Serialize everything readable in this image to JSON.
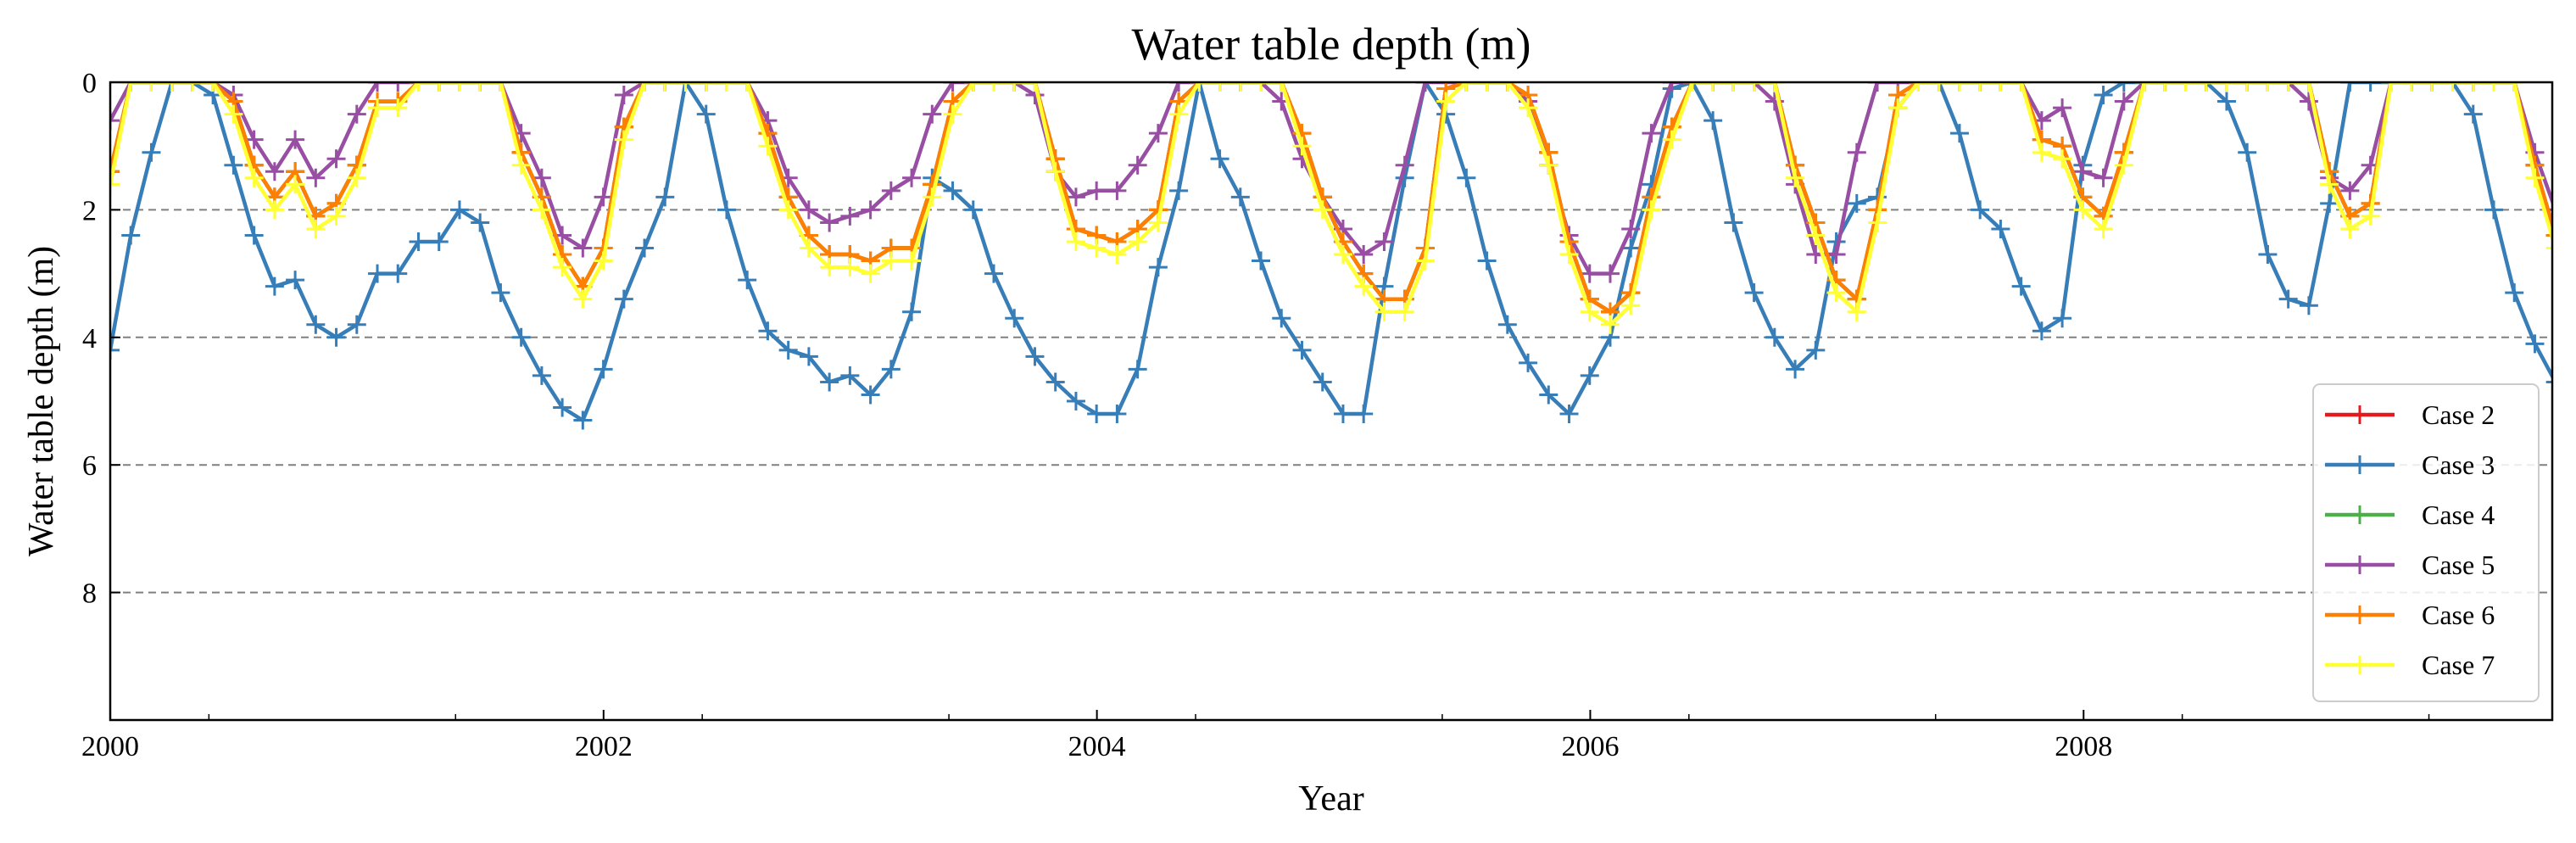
{
  "chart_data": {
    "type": "line",
    "title": "Water table depth (m)",
    "xlabel": "Year",
    "ylabel": "Water table depth (m)",
    "xlim": [
      2000,
      2009.9
    ],
    "ylim": [
      10,
      0
    ],
    "y_inverted": true,
    "x_ticks": [
      2000,
      2002,
      2004,
      2006,
      2008
    ],
    "x_tick_labels": [
      "2000",
      "2002",
      "2004",
      "2006",
      "2008"
    ],
    "x_minor_ticks": [
      2000.4,
      2001.4,
      2002.4,
      2003.4,
      2004.4,
      2005.4,
      2006.4,
      2007.4,
      2008.4,
      2009.4
    ],
    "y_ticks": [
      0,
      2,
      4,
      6,
      8
    ],
    "y_tick_labels": [
      "0",
      "2",
      "4",
      "6",
      "8"
    ],
    "grid": "horizontal dashed at y = 2, 4, 6, 8",
    "marker": "plus",
    "legend_position": "lower-right",
    "x_start": 2000.0,
    "x_step_years": 0.0833,
    "series": [
      {
        "name": "Case 2",
        "color": "#e41a1c",
        "values": [
          1.4,
          0.0,
          0.0,
          0.0,
          0.0,
          0.0,
          0.3,
          1.3,
          1.8,
          1.4,
          2.1,
          1.9,
          1.3,
          0.3,
          0.3,
          0.0,
          0.0,
          0.0,
          0.0,
          0.0,
          1.1,
          1.8,
          2.7,
          3.2,
          2.6,
          0.7,
          0.0,
          0.0,
          0.0,
          0.0,
          0.0,
          0.0,
          0.8,
          1.8,
          2.4,
          2.7,
          2.7,
          2.8,
          2.6,
          2.6,
          1.6,
          0.3,
          0.0,
          0.0,
          0.0,
          0.0,
          1.2,
          2.3,
          2.4,
          2.5,
          2.3,
          2.0,
          0.3,
          0.0,
          0.0,
          0.0,
          0.0,
          0.0,
          0.8,
          1.8,
          2.5,
          3.0,
          3.4,
          3.4,
          2.6,
          0.1,
          0.0,
          0.0,
          0.0,
          0.2,
          1.1,
          2.5,
          3.4,
          3.6,
          3.3,
          1.8,
          0.7,
          0.0,
          0.0,
          0.0,
          0.0,
          0.0,
          1.3,
          2.2,
          3.1,
          3.4,
          2.0,
          0.2,
          0.0,
          0.0,
          0.0,
          0.0,
          0.0,
          0.0,
          0.9,
          1.0,
          1.8,
          2.1,
          1.1,
          0.0,
          0.0,
          0.0,
          0.0,
          0.0,
          0.0,
          0.0,
          0.0,
          0.0,
          1.4,
          2.1,
          1.9,
          0.0,
          0.0,
          0.0,
          0.0,
          0.0,
          0.0,
          0.0,
          1.3,
          2.4,
          3.2,
          3.8
        ]
      },
      {
        "name": "Case 3",
        "color": "#377eb8",
        "values": [
          4.2,
          2.4,
          1.1,
          0.0,
          0.0,
          0.2,
          1.3,
          2.4,
          3.2,
          3.1,
          3.8,
          4.0,
          3.8,
          3.0,
          3.0,
          2.5,
          2.5,
          2.0,
          2.2,
          3.3,
          4.0,
          4.6,
          5.1,
          5.3,
          4.5,
          3.4,
          2.6,
          1.8,
          0.0,
          0.5,
          2.0,
          3.1,
          3.9,
          4.2,
          4.3,
          4.7,
          4.6,
          4.9,
          4.5,
          3.6,
          1.5,
          1.7,
          2.0,
          3.0,
          3.7,
          4.3,
          4.7,
          5.0,
          5.2,
          5.2,
          4.5,
          2.9,
          1.7,
          0.0,
          1.2,
          1.8,
          2.8,
          3.7,
          4.2,
          4.7,
          5.2,
          5.2,
          3.2,
          1.5,
          0.0,
          0.5,
          1.5,
          2.8,
          3.8,
          4.4,
          4.9,
          5.2,
          4.6,
          4.0,
          2.6,
          1.6,
          0.1,
          0.0,
          0.6,
          2.2,
          3.3,
          4.0,
          4.5,
          4.2,
          2.5,
          1.9,
          1.8,
          0.4,
          0.0,
          0.0,
          0.8,
          2.0,
          2.3,
          3.2,
          3.9,
          3.7,
          1.3,
          0.2,
          0.0,
          0.0,
          0.0,
          0.0,
          0.0,
          0.3,
          1.1,
          2.7,
          3.4,
          3.5,
          1.9,
          0.0,
          0.0,
          0.0,
          0.0,
          0.0,
          0.0,
          0.5,
          2.0,
          3.3,
          4.1,
          4.7
        ]
      },
      {
        "name": "Case 4",
        "color": "#4daf4a",
        "values": [
          1.4,
          0.0,
          0.0,
          0.0,
          0.0,
          0.0,
          0.3,
          1.3,
          1.8,
          1.4,
          2.1,
          1.9,
          1.3,
          0.3,
          0.3,
          0.0,
          0.0,
          0.0,
          0.0,
          0.0,
          1.1,
          1.8,
          2.7,
          3.2,
          2.6,
          0.7,
          0.0,
          0.0,
          0.0,
          0.0,
          0.0,
          0.0,
          0.8,
          1.8,
          2.4,
          2.7,
          2.7,
          2.8,
          2.6,
          2.6,
          1.6,
          0.3,
          0.0,
          0.0,
          0.0,
          0.0,
          1.2,
          2.3,
          2.4,
          2.5,
          2.3,
          2.0,
          0.3,
          0.0,
          0.0,
          0.0,
          0.0,
          0.0,
          0.8,
          1.8,
          2.5,
          3.0,
          3.4,
          3.4,
          2.6,
          0.1,
          0.0,
          0.0,
          0.0,
          0.2,
          1.1,
          2.5,
          3.4,
          3.6,
          3.3,
          1.8,
          0.7,
          0.0,
          0.0,
          0.0,
          0.0,
          0.0,
          1.3,
          2.2,
          3.1,
          3.4,
          2.0,
          0.2,
          0.0,
          0.0,
          0.0,
          0.0,
          0.0,
          0.0,
          0.9,
          1.0,
          1.8,
          2.1,
          1.1,
          0.0,
          0.0,
          0.0,
          0.0,
          0.0,
          0.0,
          0.0,
          0.0,
          0.0,
          1.4,
          2.1,
          1.9,
          0.0,
          0.0,
          0.0,
          0.0,
          0.0,
          0.0,
          0.0,
          1.3,
          2.4,
          3.2,
          3.8
        ]
      },
      {
        "name": "Case 5",
        "color": "#984ea3",
        "values": [
          0.6,
          0.0,
          0.0,
          0.0,
          0.0,
          0.0,
          0.2,
          0.9,
          1.4,
          0.9,
          1.5,
          1.2,
          0.5,
          0.0,
          0.0,
          0.0,
          0.0,
          0.0,
          0.0,
          0.0,
          0.8,
          1.5,
          2.4,
          2.6,
          1.8,
          0.2,
          0.0,
          0.0,
          0.0,
          0.0,
          0.0,
          0.0,
          0.6,
          1.5,
          2.0,
          2.2,
          2.1,
          2.0,
          1.7,
          1.5,
          0.5,
          0.0,
          0.0,
          0.0,
          0.0,
          0.2,
          1.4,
          1.8,
          1.7,
          1.7,
          1.3,
          0.8,
          0.0,
          0.0,
          0.0,
          0.0,
          0.0,
          0.3,
          1.2,
          1.8,
          2.3,
          2.7,
          2.5,
          1.3,
          0.0,
          0.0,
          0.0,
          0.0,
          0.0,
          0.3,
          1.3,
          2.4,
          3.0,
          3.0,
          2.3,
          0.8,
          0.0,
          0.0,
          0.0,
          0.0,
          0.0,
          0.3,
          1.6,
          2.7,
          2.7,
          1.1,
          0.0,
          0.0,
          0.0,
          0.0,
          0.0,
          0.0,
          0.0,
          0.0,
          0.6,
          0.4,
          1.4,
          1.5,
          0.3,
          0.0,
          0.0,
          0.0,
          0.0,
          0.0,
          0.0,
          0.0,
          0.0,
          0.3,
          1.5,
          1.7,
          1.3,
          0.0,
          0.0,
          0.0,
          0.0,
          0.0,
          0.0,
          0.0,
          1.1,
          2.0,
          2.9,
          3.5
        ]
      },
      {
        "name": "Case 6",
        "color": "#ff7f00",
        "values": [
          1.4,
          0.0,
          0.0,
          0.0,
          0.0,
          0.0,
          0.3,
          1.3,
          1.8,
          1.4,
          2.1,
          1.9,
          1.3,
          0.3,
          0.3,
          0.0,
          0.0,
          0.0,
          0.0,
          0.0,
          1.1,
          1.8,
          2.7,
          3.2,
          2.6,
          0.7,
          0.0,
          0.0,
          0.0,
          0.0,
          0.0,
          0.0,
          0.8,
          1.8,
          2.4,
          2.7,
          2.7,
          2.8,
          2.6,
          2.6,
          1.6,
          0.3,
          0.0,
          0.0,
          0.0,
          0.0,
          1.2,
          2.3,
          2.4,
          2.5,
          2.3,
          2.0,
          0.3,
          0.0,
          0.0,
          0.0,
          0.0,
          0.0,
          0.8,
          1.8,
          2.5,
          3.0,
          3.4,
          3.4,
          2.6,
          0.1,
          0.0,
          0.0,
          0.0,
          0.2,
          1.1,
          2.5,
          3.4,
          3.6,
          3.3,
          1.8,
          0.7,
          0.0,
          0.0,
          0.0,
          0.0,
          0.0,
          1.3,
          2.2,
          3.1,
          3.4,
          2.0,
          0.2,
          0.0,
          0.0,
          0.0,
          0.0,
          0.0,
          0.0,
          0.9,
          1.0,
          1.8,
          2.1,
          1.1,
          0.0,
          0.0,
          0.0,
          0.0,
          0.0,
          0.0,
          0.0,
          0.0,
          0.0,
          1.4,
          2.1,
          1.9,
          0.0,
          0.0,
          0.0,
          0.0,
          0.0,
          0.0,
          0.0,
          1.3,
          2.4,
          3.2,
          3.8
        ]
      },
      {
        "name": "Case 7",
        "color": "#ffff33",
        "values": [
          1.6,
          0.0,
          0.0,
          0.0,
          0.0,
          0.0,
          0.5,
          1.5,
          2.0,
          1.6,
          2.3,
          2.1,
          1.5,
          0.4,
          0.4,
          0.0,
          0.0,
          0.0,
          0.0,
          0.0,
          1.3,
          2.0,
          2.9,
          3.4,
          2.8,
          0.9,
          0.0,
          0.0,
          0.0,
          0.0,
          0.0,
          0.0,
          1.0,
          2.0,
          2.6,
          2.9,
          2.9,
          3.0,
          2.8,
          2.8,
          1.8,
          0.5,
          0.0,
          0.0,
          0.0,
          0.0,
          1.4,
          2.5,
          2.6,
          2.7,
          2.5,
          2.2,
          0.5,
          0.0,
          0.0,
          0.0,
          0.0,
          0.0,
          1.0,
          2.0,
          2.7,
          3.2,
          3.6,
          3.6,
          2.8,
          0.3,
          0.0,
          0.0,
          0.0,
          0.4,
          1.3,
          2.7,
          3.6,
          3.8,
          3.5,
          2.0,
          0.9,
          0.0,
          0.0,
          0.0,
          0.0,
          0.0,
          1.5,
          2.4,
          3.3,
          3.6,
          2.2,
          0.4,
          0.0,
          0.0,
          0.0,
          0.0,
          0.0,
          0.0,
          1.1,
          1.2,
          2.0,
          2.3,
          1.3,
          0.0,
          0.0,
          0.0,
          0.0,
          0.0,
          0.0,
          0.0,
          0.0,
          0.0,
          1.6,
          2.3,
          2.1,
          0.0,
          0.0,
          0.0,
          0.0,
          0.0,
          0.0,
          0.0,
          1.5,
          2.6,
          3.4,
          4.0
        ]
      }
    ]
  }
}
